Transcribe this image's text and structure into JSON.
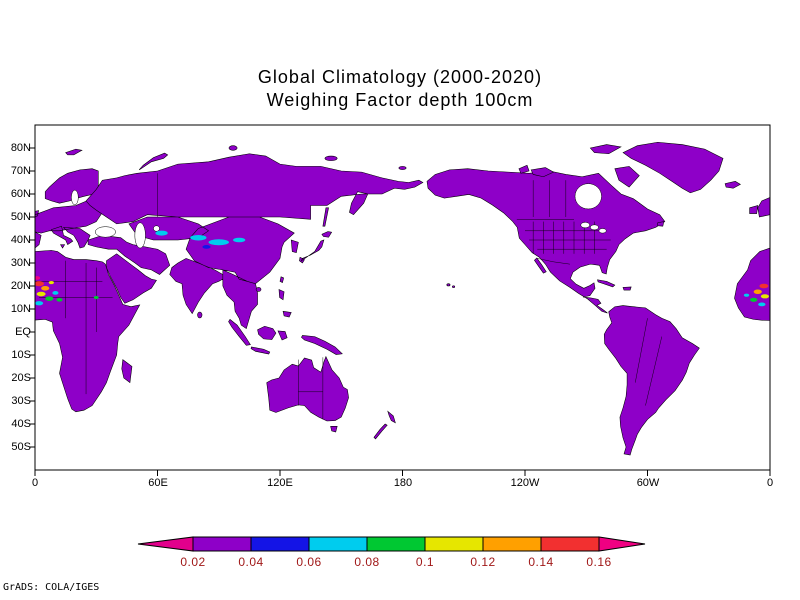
{
  "title": {
    "line1": "Global Climatology (2000-2020)",
    "line2": "Weighing Factor depth 100cm"
  },
  "credit": "GrADS: COLA/IGES",
  "map": {
    "y_labels": [
      "80N",
      "70N",
      "60N",
      "50N",
      "40N",
      "30N",
      "20N",
      "10N",
      "EQ",
      "10S",
      "20S",
      "30S",
      "40S",
      "50S"
    ],
    "x_labels": [
      "0",
      "60E",
      "120E",
      "180",
      "120W",
      "60W",
      "0"
    ]
  },
  "colorbar": {
    "labels": [
      "0.02",
      "0.04",
      "0.06",
      "0.08",
      "0.1",
      "0.12",
      "0.14",
      "0.16"
    ],
    "colors": [
      "#e2008c",
      "#8e00c8",
      "#1414e6",
      "#00ccee",
      "#00c832",
      "#e6e600",
      "#ffa000",
      "#f23030",
      "#f00082"
    ],
    "label_color": "#a01818"
  },
  "chart_data": {
    "type": "heatmap",
    "title": "Global Climatology (2000-2020)",
    "subtitle": "Weighing Factor depth 100cm",
    "x_axis": {
      "ticks": [
        "0",
        "60E",
        "120E",
        "180",
        "120W",
        "60W",
        "0"
      ],
      "lon_range_deg": [
        0,
        360
      ]
    },
    "y_axis": {
      "ticks": [
        "80N",
        "70N",
        "60N",
        "50N",
        "40N",
        "30N",
        "20N",
        "10N",
        "EQ",
        "10S",
        "20S",
        "30S",
        "40S",
        "50S"
      ],
      "lat_range_deg": [
        -60,
        90
      ]
    },
    "levels": [
      0.02,
      0.04,
      0.06,
      0.08,
      0.1,
      0.12,
      0.14,
      0.16
    ],
    "palette": [
      "#e2008c",
      "#8e00c8",
      "#1414e6",
      "#00ccee",
      "#00c832",
      "#e6e600",
      "#ffa000",
      "#f23030",
      "#f00082"
    ],
    "land_fill": "#8e00c8",
    "ocean_fill": "#ffffff",
    "summary": "Weighing factor at 100cm depth is 0.02-0.04 (purple) over nearly all land; oceans undefined (white). Elevated values 0.05-0.17 appear as small patches in the West Africa / Sahel region (near 0 and 360 longitude, 10N-24N) and cyan patches 0.05-0.07 across Central Asia (60E-105E, 35N-45N).",
    "patches": [
      {
        "lon": 2,
        "lat": 21,
        "rx": 2.4,
        "ry": 1.1,
        "color": "#f23030",
        "approx_value": 0.15
      },
      {
        "lon": 1,
        "lat": 23.5,
        "rx": 1.5,
        "ry": 0.8,
        "color": "#f00082",
        "approx_value": 0.17
      },
      {
        "lon": 5,
        "lat": 19,
        "rx": 2,
        "ry": 1,
        "color": "#ffa000",
        "approx_value": 0.13
      },
      {
        "lon": 3,
        "lat": 16.5,
        "rx": 2.2,
        "ry": 1,
        "color": "#e6e600",
        "approx_value": 0.11
      },
      {
        "lon": 7,
        "lat": 14.5,
        "rx": 2,
        "ry": 1,
        "color": "#00c832",
        "approx_value": 0.09
      },
      {
        "lon": 2,
        "lat": 12.5,
        "rx": 2,
        "ry": 0.9,
        "color": "#00ccee",
        "approx_value": 0.07
      },
      {
        "lon": 10,
        "lat": 17,
        "rx": 1.5,
        "ry": 0.8,
        "color": "#00ccee",
        "approx_value": 0.07
      },
      {
        "lon": 12,
        "lat": 14,
        "rx": 1.5,
        "ry": 0.8,
        "color": "#00c832",
        "approx_value": 0.09
      },
      {
        "lon": 8,
        "lat": 21.5,
        "rx": 1.3,
        "ry": 0.7,
        "color": "#e6e600",
        "approx_value": 0.11
      },
      {
        "lon": 30,
        "lat": 15,
        "rx": 1.2,
        "ry": 0.7,
        "color": "#00c832",
        "approx_value": 0.09
      },
      {
        "lon": 62,
        "lat": 43,
        "rx": 3,
        "ry": 1.1,
        "color": "#00ccee",
        "approx_value": 0.06
      },
      {
        "lon": 80,
        "lat": 41,
        "rx": 4,
        "ry": 1.2,
        "color": "#00ccee",
        "approx_value": 0.06
      },
      {
        "lon": 90,
        "lat": 39,
        "rx": 5,
        "ry": 1.3,
        "color": "#00ccee",
        "approx_value": 0.06
      },
      {
        "lon": 100,
        "lat": 40,
        "rx": 3,
        "ry": 1,
        "color": "#00ccee",
        "approx_value": 0.06
      },
      {
        "lon": 84,
        "lat": 37,
        "rx": 2,
        "ry": 0.8,
        "color": "#1414e6",
        "approx_value": 0.05
      },
      {
        "lon": 357,
        "lat": 20,
        "rx": 2.2,
        "ry": 1,
        "color": "#f23030",
        "approx_value": 0.15
      },
      {
        "lon": 354,
        "lat": 17.5,
        "rx": 2,
        "ry": 1,
        "color": "#ffa000",
        "approx_value": 0.13
      },
      {
        "lon": 357.5,
        "lat": 15.5,
        "rx": 2,
        "ry": 0.9,
        "color": "#e6e600",
        "approx_value": 0.11
      },
      {
        "lon": 352,
        "lat": 14,
        "rx": 1.8,
        "ry": 0.9,
        "color": "#00c832",
        "approx_value": 0.09
      },
      {
        "lon": 356,
        "lat": 12,
        "rx": 1.8,
        "ry": 0.8,
        "color": "#00ccee",
        "approx_value": 0.07
      },
      {
        "lon": 348.5,
        "lat": 16,
        "rx": 1.3,
        "ry": 0.7,
        "color": "#00ccee",
        "approx_value": 0.07
      }
    ]
  }
}
